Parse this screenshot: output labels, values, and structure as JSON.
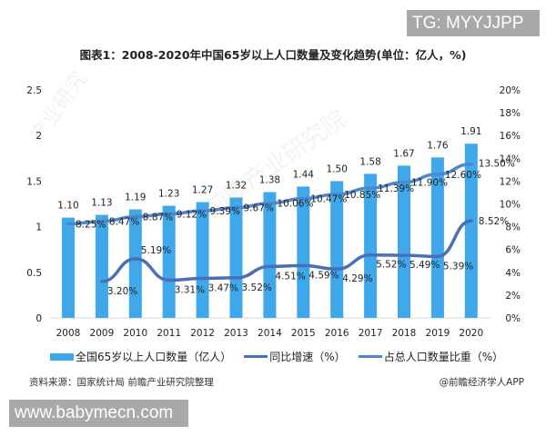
{
  "watermark_top": "TG: MYYJJPP",
  "watermark_bottom": "www.babymecn.com",
  "title": "图表1：2008-2020年中国65岁以上人口数量及变化趋势(单位：亿人，%)",
  "legend": {
    "bar": "全国65岁以上人口数量（亿人）",
    "growth": "同比增速（%）",
    "share": "占总人口数量比重（%）"
  },
  "source": "资料来源：国家统计局 前瞻产业研究院整理",
  "credit": "@前瞻经济学人APP",
  "colors": {
    "bar": "#3ea8ea",
    "growth": "#4a6fb5",
    "share": "#4f86cc"
  },
  "chart_data": {
    "type": "bar",
    "title": "图表1：2008-2020年中国65岁以上人口数量及变化趋势(单位：亿人，%)",
    "categories": [
      "2008",
      "2009",
      "2010",
      "2011",
      "2012",
      "2013",
      "2014",
      "2015",
      "2016",
      "2017",
      "2018",
      "2019",
      "2020"
    ],
    "series": [
      {
        "name": "全国65岁以上人口数量（亿人）",
        "type": "bar",
        "axis": "left",
        "values": [
          1.1,
          1.13,
          1.19,
          1.23,
          1.27,
          1.32,
          1.38,
          1.44,
          1.5,
          1.58,
          1.67,
          1.76,
          1.91
        ]
      },
      {
        "name": "同比增速（%）",
        "type": "line",
        "axis": "right",
        "values": [
          null,
          3.2,
          5.19,
          3.31,
          3.47,
          3.52,
          4.51,
          4.59,
          4.29,
          5.52,
          5.49,
          5.39,
          8.52
        ]
      },
      {
        "name": "占总人口数量比重（%）",
        "type": "line",
        "axis": "right",
        "values": [
          8.25,
          8.47,
          8.87,
          9.12,
          9.39,
          9.67,
          10.06,
          10.47,
          10.85,
          11.39,
          11.9,
          12.6,
          13.5
        ]
      }
    ],
    "left_axis": {
      "ticks": [
        "0",
        "0.5",
        "1",
        "1.5",
        "2",
        "2.5"
      ],
      "ylim": [
        0,
        2.5
      ]
    },
    "right_axis": {
      "ticks": [
        "0%",
        "2%",
        "4%",
        "6%",
        "8%",
        "10%",
        "12%",
        "14%",
        "16%",
        "18%",
        "20%"
      ],
      "ylim": [
        0,
        20
      ]
    },
    "xlabel": "",
    "ylabel": "",
    "grid": false,
    "legend_position": "bottom"
  }
}
